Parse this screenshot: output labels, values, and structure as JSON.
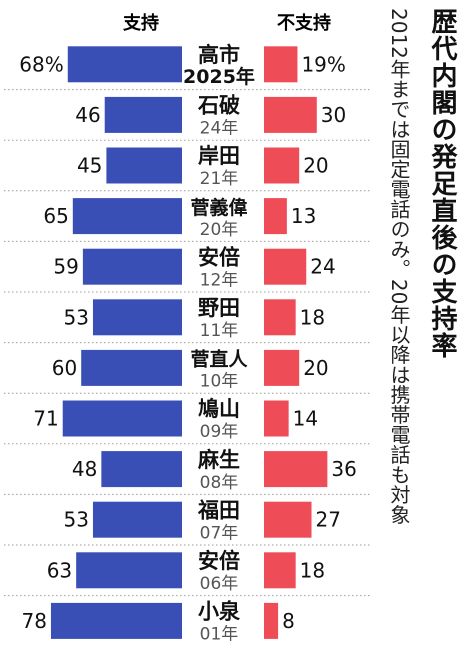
{
  "chart_data": {
    "type": "bar",
    "title": "歴代内閣の発足直後の支持率",
    "note": "2012年までは固定電話のみ。20年以降は携帯電話も対象",
    "colors": {
      "support": "#3a4fb6",
      "nonsupport": "#ee4d58"
    },
    "series": [
      {
        "name": "支持",
        "values": [
          68,
          46,
          45,
          65,
          59,
          53,
          60,
          71,
          48,
          53,
          63,
          78
        ]
      },
      {
        "name": "不支持",
        "values": [
          19,
          30,
          20,
          13,
          24,
          18,
          20,
          14,
          36,
          27,
          18,
          8
        ]
      }
    ],
    "categories": [
      {
        "name": "高市",
        "year": "2025年"
      },
      {
        "name": "石破",
        "year": "24年"
      },
      {
        "name": "岸田",
        "year": "21年"
      },
      {
        "name": "菅義偉",
        "year": "20年"
      },
      {
        "name": "安倍",
        "year": "12年"
      },
      {
        "name": "野田",
        "year": "11年"
      },
      {
        "name": "菅直人",
        "year": "10年"
      },
      {
        "name": "鳩山",
        "year": "09年"
      },
      {
        "name": "麻生",
        "year": "08年"
      },
      {
        "name": "福田",
        "year": "07年"
      },
      {
        "name": "安倍",
        "year": "06年"
      },
      {
        "name": "小泉",
        "year": "01年"
      }
    ],
    "value_labels": {
      "support": [
        "68%",
        "46",
        "45",
        "65",
        "59",
        "53",
        "60",
        "71",
        "48",
        "53",
        "63",
        "78"
      ],
      "nonsupport": [
        "19%",
        "30",
        "20",
        "13",
        "24",
        "18",
        "20",
        "14",
        "36",
        "27",
        "18",
        "8"
      ]
    }
  }
}
